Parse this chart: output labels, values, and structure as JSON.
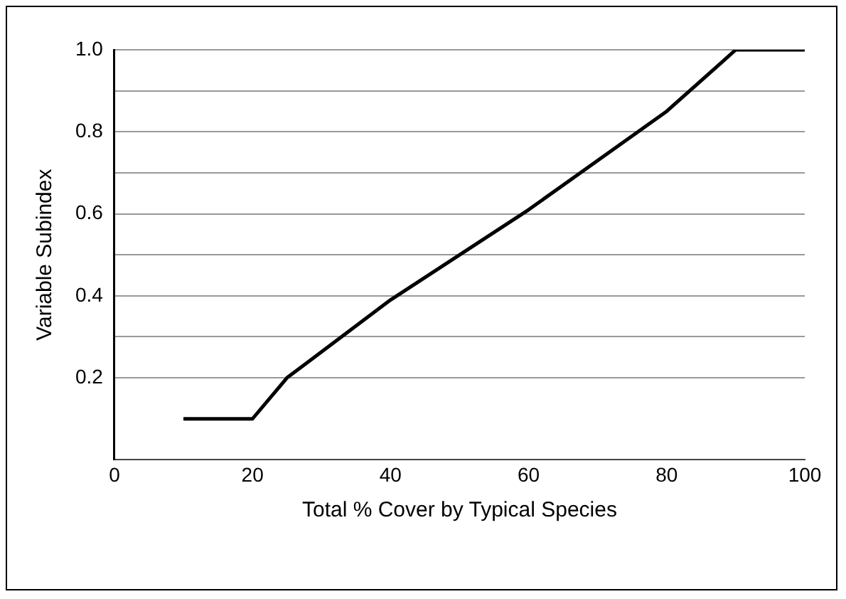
{
  "chart_data": {
    "type": "line",
    "xlabel": "Total % Cover by Typical Species",
    "ylabel": "Variable Subindex",
    "x": [
      10,
      20,
      25,
      40,
      60,
      80,
      90,
      100
    ],
    "series": [
      {
        "color": "#000000",
        "values": [
          0.1,
          0.1,
          0.2,
          0.39,
          0.61,
          0.85,
          1.0,
          1.0
        ]
      }
    ],
    "xlim": [
      0,
      100
    ],
    "xticks": [
      0,
      20,
      40,
      60,
      80,
      100
    ],
    "ylim": [
      0,
      1
    ],
    "yticks": [
      {
        "value": 0.2,
        "label": "0.2"
      },
      {
        "value": 0.3,
        "label": null
      },
      {
        "value": 0.4,
        "label": "0.4"
      },
      {
        "value": 0.5,
        "label": null
      },
      {
        "value": 0.6,
        "label": "0.6"
      },
      {
        "value": 0.7,
        "label": null
      },
      {
        "value": 0.8,
        "label": "0.8"
      },
      {
        "value": 0.9,
        "label": null
      },
      {
        "value": 1.0,
        "label": "1.0"
      }
    ],
    "grid": "y",
    "legend": false,
    "marker": "none",
    "line_style": "solid"
  }
}
